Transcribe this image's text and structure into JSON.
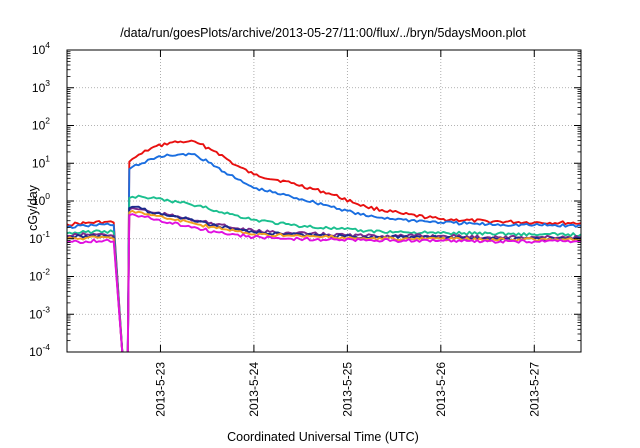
{
  "chart_data": {
    "type": "line",
    "title": "/data/run/goesPlots/archive/2013-05-27/11:00/flux/../bryn/5daysMoon.plot",
    "xlabel": "Coordinated Universal Time (UTC)",
    "ylabel": "cGy/day",
    "yscale": "log",
    "ylim": [
      0.0001,
      10000
    ],
    "xlim": [
      "2013-05-22 00:00",
      "2013-05-27 12:00"
    ],
    "y_ticks": [
      {
        "base": "10",
        "exp": "-4",
        "value": 0.0001
      },
      {
        "base": "10",
        "exp": "-3",
        "value": 0.001
      },
      {
        "base": "10",
        "exp": "-2",
        "value": 0.01
      },
      {
        "base": "10",
        "exp": "-1",
        "value": 0.1
      },
      {
        "base": "10",
        "exp": "0",
        "value": 1
      },
      {
        "base": "10",
        "exp": "1",
        "value": 10
      },
      {
        "base": "10",
        "exp": "2",
        "value": 100
      },
      {
        "base": "10",
        "exp": "3",
        "value": 1000
      },
      {
        "base": "10",
        "exp": "4",
        "value": 10000
      }
    ],
    "x_ticks": [
      {
        "label": "2013-5-23",
        "value": "2013-05-23 00:00"
      },
      {
        "label": "2013-5-24",
        "value": "2013-05-24 00:00"
      },
      {
        "label": "2013-5-25",
        "value": "2013-05-25 00:00"
      },
      {
        "label": "2013-5-26",
        "value": "2013-05-26 00:00"
      },
      {
        "label": "2013-5-27",
        "value": "2013-05-27 00:00"
      }
    ],
    "grid": true,
    "legend": "none",
    "series": [
      {
        "color": "#e81010",
        "x": [
          "2013-05-22 00:00",
          "2013-05-22 04:48",
          "2013-05-22 09:36",
          "2013-05-22 12:00",
          "2013-05-22 14:24",
          "2013-05-22 15:36",
          "2013-05-22 16:00",
          "2013-05-22 16:48",
          "2013-05-22 19:12",
          "2013-05-22 21:36",
          "2013-05-23 02:24",
          "2013-05-23 07:12",
          "2013-05-23 09:36",
          "2013-05-23 14:24",
          "2013-05-23 19:12",
          "2013-05-24 00:00",
          "2013-05-24 09:36",
          "2013-05-24 19:12",
          "2013-05-25 04:48",
          "2013-05-25 14:24",
          "2013-05-26 00:00",
          "2013-05-26 12:00",
          "2013-05-27 00:00",
          "2013-05-27 12:00"
        ],
        "y": [
          0.24,
          0.26,
          0.28,
          0.27,
          5e-05,
          5e-05,
          11,
          13,
          18,
          25,
          35,
          38,
          34,
          20,
          9,
          5,
          3,
          1.6,
          0.7,
          0.45,
          0.33,
          0.29,
          0.27,
          0.26
        ]
      },
      {
        "color": "#1a6ee0",
        "x": [
          "2013-05-22 00:00",
          "2013-05-22 04:48",
          "2013-05-22 09:36",
          "2013-05-22 12:00",
          "2013-05-22 14:24",
          "2013-05-22 15:36",
          "2013-05-22 16:00",
          "2013-05-22 16:48",
          "2013-05-22 19:12",
          "2013-05-22 21:36",
          "2013-05-23 02:24",
          "2013-05-23 07:12",
          "2013-05-23 09:36",
          "2013-05-23 14:24",
          "2013-05-23 19:12",
          "2013-05-24 00:00",
          "2013-05-24 09:36",
          "2013-05-24 19:12",
          "2013-05-25 04:48",
          "2013-05-25 14:24",
          "2013-05-26 00:00",
          "2013-05-26 12:00",
          "2013-05-27 00:00",
          "2013-05-27 12:00"
        ],
        "y": [
          0.2,
          0.22,
          0.24,
          0.23,
          5e-05,
          5e-05,
          7,
          8,
          10,
          13,
          16,
          18,
          15,
          8,
          4,
          2.2,
          1.3,
          0.75,
          0.4,
          0.32,
          0.27,
          0.24,
          0.23,
          0.22
        ]
      },
      {
        "color": "#1bbf8f",
        "x": [
          "2013-05-22 00:00",
          "2013-05-22 04:48",
          "2013-05-22 09:36",
          "2013-05-22 12:00",
          "2013-05-22 14:24",
          "2013-05-22 15:36",
          "2013-05-22 16:00",
          "2013-05-22 16:48",
          "2013-05-22 19:12",
          "2013-05-22 21:36",
          "2013-05-23 02:24",
          "2013-05-23 07:12",
          "2013-05-23 09:36",
          "2013-05-23 14:24",
          "2013-05-23 19:12",
          "2013-05-24 00:00",
          "2013-05-24 09:36",
          "2013-05-24 19:12",
          "2013-05-25 04:48",
          "2013-05-25 14:24",
          "2013-05-26 00:00",
          "2013-05-26 12:00",
          "2013-05-27 00:00",
          "2013-05-27 12:00"
        ],
        "y": [
          0.14,
          0.15,
          0.16,
          0.15,
          5e-05,
          5e-05,
          1.2,
          1.3,
          1.3,
          1.2,
          1.0,
          0.85,
          0.75,
          0.55,
          0.42,
          0.32,
          0.23,
          0.19,
          0.16,
          0.15,
          0.14,
          0.14,
          0.13,
          0.13
        ]
      },
      {
        "color": "#7b2a8c",
        "x": [
          "2013-05-22 00:00",
          "2013-05-22 04:48",
          "2013-05-22 09:36",
          "2013-05-22 12:00",
          "2013-05-22 14:24",
          "2013-05-22 15:36",
          "2013-05-22 16:00",
          "2013-05-22 16:48",
          "2013-05-22 19:12",
          "2013-05-22 21:36",
          "2013-05-23 02:24",
          "2013-05-23 07:12",
          "2013-05-23 09:36",
          "2013-05-23 14:24",
          "2013-05-23 19:12",
          "2013-05-24 00:00",
          "2013-05-24 09:36",
          "2013-05-24 19:12",
          "2013-05-25 04:48",
          "2013-05-25 14:24",
          "2013-05-26 00:00",
          "2013-05-26 12:00",
          "2013-05-27 00:00",
          "2013-05-27 12:00"
        ],
        "y": [
          0.12,
          0.13,
          0.13,
          0.12,
          5e-05,
          5e-05,
          0.6,
          0.65,
          0.6,
          0.5,
          0.42,
          0.35,
          0.3,
          0.24,
          0.19,
          0.16,
          0.14,
          0.13,
          0.12,
          0.12,
          0.12,
          0.11,
          0.11,
          0.11
        ]
      },
      {
        "color": "#1c2a8c",
        "x": [
          "2013-05-22 00:00",
          "2013-05-22 04:48",
          "2013-05-22 09:36",
          "2013-05-22 12:00",
          "2013-05-22 14:24",
          "2013-05-22 15:36",
          "2013-05-22 16:00",
          "2013-05-22 16:48",
          "2013-05-22 19:12",
          "2013-05-22 21:36",
          "2013-05-23 02:24",
          "2013-05-23 07:12",
          "2013-05-23 09:36",
          "2013-05-23 14:24",
          "2013-05-23 19:12",
          "2013-05-24 00:00",
          "2013-05-24 09:36",
          "2013-05-24 19:12",
          "2013-05-25 04:48",
          "2013-05-25 14:24",
          "2013-05-26 00:00",
          "2013-05-26 12:00",
          "2013-05-27 00:00",
          "2013-05-27 12:00"
        ],
        "y": [
          0.11,
          0.12,
          0.12,
          0.11,
          5e-05,
          5e-05,
          0.65,
          0.7,
          0.62,
          0.5,
          0.4,
          0.33,
          0.28,
          0.22,
          0.18,
          0.15,
          0.13,
          0.12,
          0.11,
          0.11,
          0.11,
          0.1,
          0.1,
          0.1
        ]
      },
      {
        "color": "#f0a020",
        "x": [
          "2013-05-22 00:00",
          "2013-05-22 04:48",
          "2013-05-22 09:36",
          "2013-05-22 12:00",
          "2013-05-22 14:24",
          "2013-05-22 15:36",
          "2013-05-22 16:00",
          "2013-05-22 16:48",
          "2013-05-22 19:12",
          "2013-05-22 21:36",
          "2013-05-23 02:24",
          "2013-05-23 07:12",
          "2013-05-23 09:36",
          "2013-05-23 14:24",
          "2013-05-23 19:12",
          "2013-05-24 00:00",
          "2013-05-24 09:36",
          "2013-05-24 19:12",
          "2013-05-25 04:48",
          "2013-05-25 14:24",
          "2013-05-26 00:00",
          "2013-05-26 12:00",
          "2013-05-27 00:00",
          "2013-05-27 12:00"
        ],
        "y": [
          0.1,
          0.105,
          0.11,
          0.1,
          5e-05,
          5e-05,
          0.5,
          0.55,
          0.5,
          0.42,
          0.34,
          0.28,
          0.24,
          0.19,
          0.16,
          0.13,
          0.12,
          0.11,
          0.1,
          0.1,
          0.1,
          0.095,
          0.095,
          0.095
        ]
      },
      {
        "color": "#e010e0",
        "x": [
          "2013-05-22 00:00",
          "2013-05-22 04:48",
          "2013-05-22 09:36",
          "2013-05-22 12:00",
          "2013-05-22 14:24",
          "2013-05-22 15:36",
          "2013-05-22 16:00",
          "2013-05-22 16:48",
          "2013-05-22 19:12",
          "2013-05-22 21:36",
          "2013-05-23 02:24",
          "2013-05-23 07:12",
          "2013-05-23 09:36",
          "2013-05-23 14:24",
          "2013-05-23 19:12",
          "2013-05-24 00:00",
          "2013-05-24 09:36",
          "2013-05-24 19:12",
          "2013-05-25 04:48",
          "2013-05-25 14:24",
          "2013-05-26 00:00",
          "2013-05-26 12:00",
          "2013-05-27 00:00",
          "2013-05-27 12:00"
        ],
        "y": [
          0.08,
          0.085,
          0.09,
          0.085,
          5e-05,
          5e-05,
          0.42,
          0.45,
          0.4,
          0.34,
          0.27,
          0.22,
          0.19,
          0.15,
          0.13,
          0.11,
          0.1,
          0.095,
          0.09,
          0.09,
          0.09,
          0.085,
          0.085,
          0.085
        ]
      }
    ]
  }
}
